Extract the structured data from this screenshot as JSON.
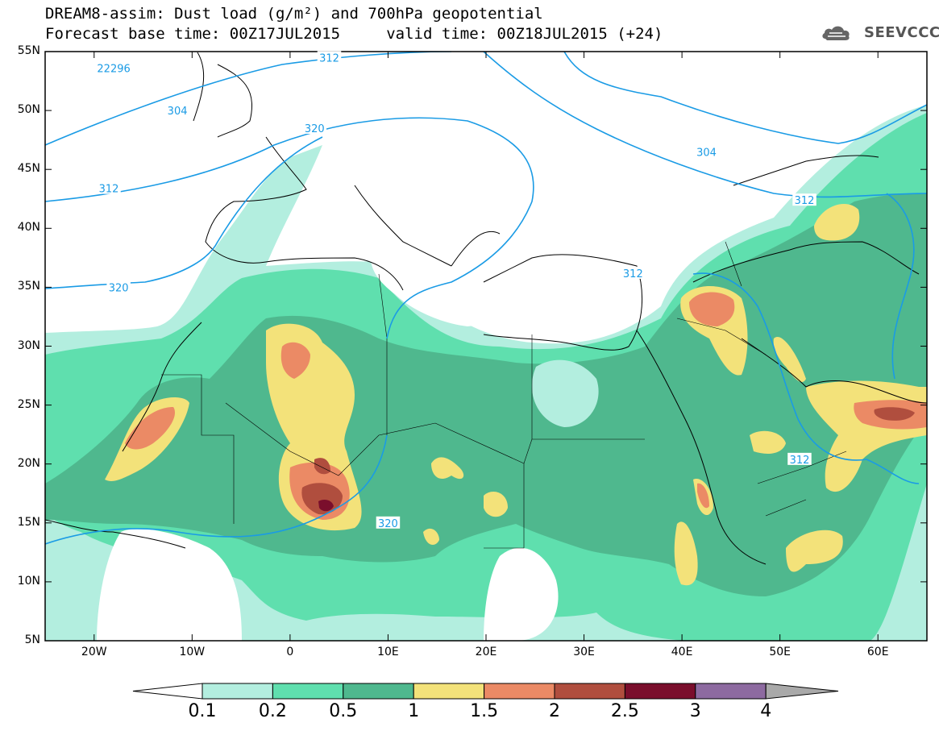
{
  "header": {
    "title_line1": "DREAM8-assim: Dust load (g/m²) and 700hPa geopotential",
    "title_line2": "Forecast base time: 00Z17JUL2015     valid time: 00Z18JUL2015 (+24)",
    "logo_text": "SEEVCCC",
    "logo_icon": "cloud-icon"
  },
  "map": {
    "lon_range": [
      -25,
      65
    ],
    "lat_range": [
      5,
      55
    ],
    "y_ticks": [
      {
        "lat": 55,
        "label": "55N"
      },
      {
        "lat": 50,
        "label": "50N"
      },
      {
        "lat": 45,
        "label": "45N"
      },
      {
        "lat": 40,
        "label": "40N"
      },
      {
        "lat": 35,
        "label": "35N"
      },
      {
        "lat": 30,
        "label": "30N"
      },
      {
        "lat": 25,
        "label": "25N"
      },
      {
        "lat": 20,
        "label": "20N"
      },
      {
        "lat": 15,
        "label": "15N"
      },
      {
        "lat": 10,
        "label": "10N"
      },
      {
        "lat": 5,
        "label": "5N"
      }
    ],
    "x_ticks": [
      {
        "lon": -20,
        "label": "20W"
      },
      {
        "lon": -10,
        "label": "10W"
      },
      {
        "lon": 0,
        "label": "0"
      },
      {
        "lon": 10,
        "label": "10E"
      },
      {
        "lon": 20,
        "label": "20E"
      },
      {
        "lon": 30,
        "label": "30E"
      },
      {
        "lon": 40,
        "label": "40E"
      },
      {
        "lon": 50,
        "label": "50E"
      },
      {
        "lon": 60,
        "label": "60E"
      }
    ],
    "contour_labels": [
      {
        "text": "22296",
        "lon": -18,
        "lat": 53.6
      },
      {
        "text": "312",
        "lon": 4,
        "lat": 54.5
      },
      {
        "text": "304",
        "lon": -11.5,
        "lat": 50
      },
      {
        "text": "320",
        "lon": 2.5,
        "lat": 48.5
      },
      {
        "text": "304",
        "lon": 42.5,
        "lat": 46.5
      },
      {
        "text": "312",
        "lon": -18.5,
        "lat": 43.4
      },
      {
        "text": "312",
        "lon": 52.5,
        "lat": 42.4
      },
      {
        "text": "312",
        "lon": 35,
        "lat": 36.2
      },
      {
        "text": "320",
        "lon": -17.5,
        "lat": 35
      },
      {
        "text": "320",
        "lon": 10,
        "lat": 15
      },
      {
        "text": "312",
        "lon": 52,
        "lat": 20.4
      }
    ]
  },
  "colorbar": {
    "labels": [
      "0.1",
      "0.2",
      "0.5",
      "1",
      "1.5",
      "2",
      "2.5",
      "3",
      "4"
    ],
    "colors": [
      "#b3eedf",
      "#5fdfae",
      "#4fb88e",
      "#f3e27a",
      "#eb8a65",
      "#b04e3e",
      "#7a0e2c",
      "#8d6aa0",
      "#a9a9a9"
    ]
  }
}
